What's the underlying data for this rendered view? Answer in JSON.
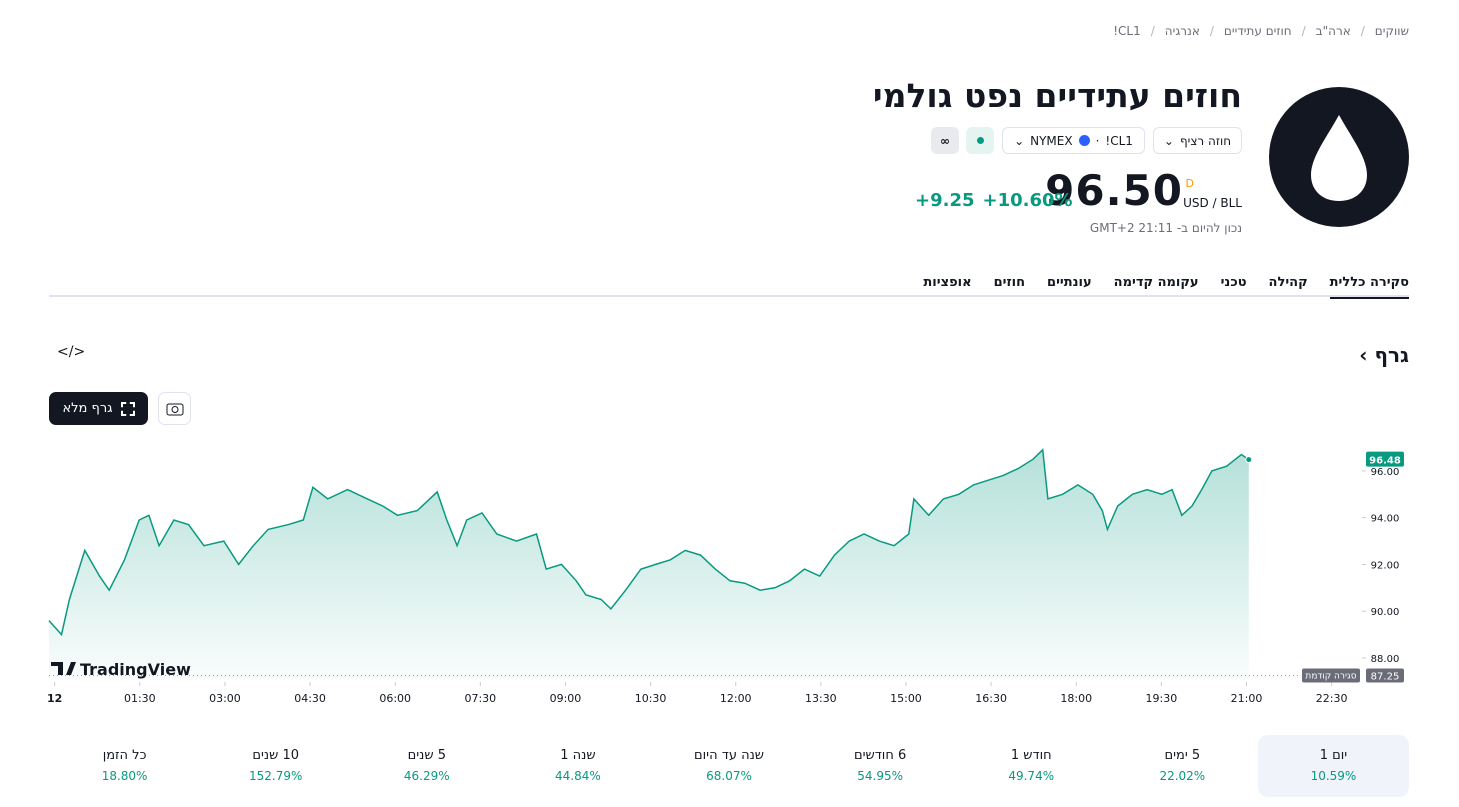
{
  "breadcrumbs": [
    "שווקים",
    "ארה\"ב",
    "חוזים עתידיים",
    "אנרגיה",
    "CL1!"
  ],
  "header": {
    "title": "חוזים עתידיים נפט גולמי",
    "contract": "חוזה רציף",
    "symbol": "CL1!",
    "exchange": "NYMEX",
    "price": "96.50",
    "price_flag": "D",
    "currency": "USD / BLL",
    "change_pct": "+10.60%",
    "change": "+9.25",
    "as_of": "נכון להיום ב- 21:11 GMT+2"
  },
  "tabs": [
    "סקירה כללית",
    "קהילה",
    "טכני",
    "עקומה קדימה",
    "עונתיים",
    "חוזים",
    "אופציות"
  ],
  "section_title": "גרף",
  "fullscreen_button": "גרף מלא",
  "chart": {
    "type": "line",
    "color": "#089981",
    "watermark": "TradingView",
    "x": [
      -0.1,
      0.12,
      0.26,
      0.53,
      0.79,
      0.96,
      1.23,
      1.49,
      1.66,
      1.84,
      2.1,
      2.36,
      2.63,
      2.98,
      3.24,
      3.5,
      3.76,
      4.11,
      4.38,
      4.55,
      4.81,
      5.16,
      5.51,
      5.78,
      6.04,
      6.39,
      6.74,
      6.91,
      7.09,
      7.26,
      7.53,
      7.79,
      8.14,
      8.49,
      8.66,
      8.93,
      9.19,
      9.36,
      9.63,
      9.8,
      10.06,
      10.33,
      10.59,
      10.85,
      11.11,
      11.38,
      11.64,
      11.9,
      12.16,
      12.43,
      12.69,
      12.95,
      13.21,
      13.48,
      13.74,
      14.0,
      14.26,
      14.53,
      14.79,
      15.05,
      15.14,
      15.4,
      15.66,
      15.93,
      16.19,
      16.45,
      16.71,
      16.98,
      17.24,
      17.41,
      17.5,
      17.76,
      18.03,
      18.29,
      18.46,
      18.55,
      18.73,
      18.99,
      19.25,
      19.51,
      19.69,
      19.86,
      20.04,
      20.21,
      20.39,
      20.65,
      20.91,
      21.04
    ],
    "values": [
      89.6,
      89.0,
      90.5,
      92.6,
      91.5,
      90.9,
      92.2,
      93.9,
      94.1,
      92.8,
      93.9,
      93.7,
      92.8,
      93.0,
      92.0,
      92.8,
      93.5,
      93.7,
      93.9,
      95.3,
      94.8,
      95.2,
      94.8,
      94.5,
      94.1,
      94.3,
      95.1,
      93.9,
      92.8,
      93.9,
      94.2,
      93.3,
      93.0,
      93.3,
      91.8,
      92.0,
      91.3,
      90.7,
      90.5,
      90.1,
      90.9,
      91.8,
      92.0,
      92.2,
      92.6,
      92.4,
      91.8,
      91.3,
      91.2,
      90.9,
      91.0,
      91.3,
      91.8,
      91.5,
      92.4,
      93.0,
      93.3,
      93.0,
      92.8,
      93.3,
      94.8,
      94.1,
      94.8,
      95.0,
      95.4,
      95.6,
      95.8,
      96.1,
      96.5,
      96.9,
      94.8,
      95.0,
      95.4,
      95.0,
      94.3,
      93.5,
      94.5,
      95.0,
      95.2,
      95.0,
      95.2,
      94.1,
      94.5,
      95.2,
      96.0,
      96.2,
      96.7,
      96.48
    ],
    "last_value": 96.48,
    "previous_close": 87.25,
    "previous_close_label": "סגירה קודמת",
    "xlim": [
      -0.1,
      23
    ],
    "ylim": [
      87.06,
      97.32
    ],
    "xticks": [
      {
        "value": 0,
        "label": "12"
      },
      {
        "value": 1.5,
        "label": "01:30"
      },
      {
        "value": 3,
        "label": "03:00"
      },
      {
        "value": 4.5,
        "label": "04:30"
      },
      {
        "value": 6,
        "label": "06:00"
      },
      {
        "value": 7.5,
        "label": "07:30"
      },
      {
        "value": 9,
        "label": "09:00"
      },
      {
        "value": 10.5,
        "label": "10:30"
      },
      {
        "value": 12,
        "label": "12:00"
      },
      {
        "value": 13.5,
        "label": "13:30"
      },
      {
        "value": 15,
        "label": "15:00"
      },
      {
        "value": 16.5,
        "label": "16:30"
      },
      {
        "value": 18,
        "label": "18:00"
      },
      {
        "value": 19.5,
        "label": "19:30"
      },
      {
        "value": 21,
        "label": "21:00"
      },
      {
        "value": 22.5,
        "label": "22:30"
      }
    ],
    "yticks": [
      {
        "value": 88,
        "label": "88.00"
      },
      {
        "value": 90,
        "label": "90.00"
      },
      {
        "value": 92,
        "label": "92.00"
      },
      {
        "value": 94,
        "label": "94.00"
      },
      {
        "value": 96,
        "label": "96.00"
      }
    ]
  },
  "performance": [
    {
      "period": "יום 1",
      "change": "10.59%"
    },
    {
      "period": "5 ימים",
      "change": "22.02%"
    },
    {
      "period": "חודש 1",
      "change": "49.74%"
    },
    {
      "period": "6 חודשים",
      "change": "54.95%"
    },
    {
      "period": "שנה עד היום",
      "change": "68.07%"
    },
    {
      "period": "שנה 1",
      "change": "44.84%"
    },
    {
      "period": "5 שנים",
      "change": "46.29%"
    },
    {
      "period": "10 שנים",
      "change": "152.79%"
    },
    {
      "period": "כל הזמן",
      "change": "18.80%"
    }
  ]
}
